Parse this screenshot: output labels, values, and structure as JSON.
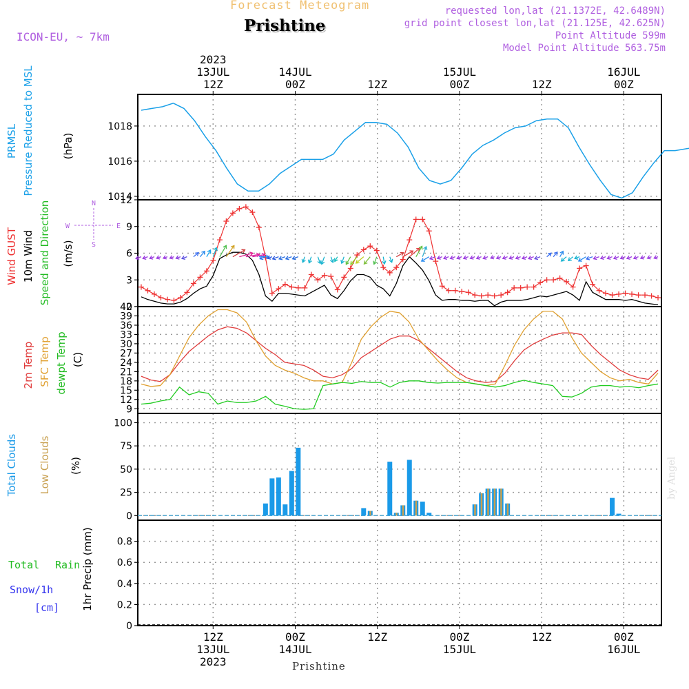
{
  "header": {
    "title": "Forecast Meteogram",
    "location": "Prishtine",
    "model": "ICON-EU, ~ 7km",
    "requested": "requested lon,lat (21.1372E, 42.6489N)",
    "gridpoint": "grid point closest lon,lat (21.125E, 42.625N)",
    "point_alt": "Point Altitude 599m",
    "model_alt": "Model Point Altitude 563.75m",
    "footer": "Prishtine",
    "watermark": "by Angel"
  },
  "colors": {
    "pressure": "#1aa0e8",
    "gust": "#ee3333",
    "wind": "#000000",
    "temp2m": "#e03c3c",
    "sfctemp": "#e0a030",
    "dewpt": "#22cc22",
    "cloud_total": "#1a9ae8",
    "cloud_low": "#c8a050",
    "purple": "#b060e0",
    "header_orange": "#f0c070",
    "snow": "#3333ee",
    "green_label": "#22bb22"
  },
  "chart_data": [
    {
      "type": "line",
      "name": "pressure",
      "ylabels": [
        "PRMSL",
        "Pressure Reduced to MSL",
        "(hPa)"
      ],
      "ylim": [
        1013.8,
        1019.8
      ],
      "yticks": [
        1014,
        1016,
        1018
      ],
      "x_step_hours": 3,
      "series": [
        {
          "name": "PRMSL",
          "values": [
            1018.9,
            1019.0,
            1019.1,
            1019.3,
            1019.0,
            1018.3,
            1017.4,
            1016.6,
            1015.6,
            1014.7,
            1014.3,
            1014.3,
            1014.7,
            1015.3,
            1015.7,
            1016.1,
            1016.1,
            1016.1,
            1016.4,
            1017.2,
            1017.7,
            1018.2,
            1018.2,
            1018.1,
            1017.6,
            1016.8,
            1015.6,
            1014.9,
            1014.7,
            1014.9,
            1015.6,
            1016.4,
            1016.9,
            1017.2,
            1017.6,
            1017.9,
            1018.0,
            1018.3,
            1018.4,
            1018.4,
            1017.9,
            1016.8,
            1015.8,
            1014.9,
            1014.1,
            1013.9,
            1014.2,
            1015.1,
            1015.9,
            1016.6,
            1016.6,
            1016.7,
            1016.8,
            1017.1
          ]
        }
      ]
    },
    {
      "type": "line",
      "name": "wind",
      "ylabels": [
        "Wind GUST",
        "10m Wind",
        "Speed and Direction",
        "(m/s)"
      ],
      "compass": [
        "N",
        "S",
        "W",
        "E"
      ],
      "ylim": [
        0,
        12
      ],
      "yticks": [
        0,
        3,
        6,
        9,
        12
      ],
      "x_step_hours": 1.5,
      "series": [
        {
          "name": "Wind GUST",
          "values": [
            2.2,
            1.8,
            1.4,
            1.0,
            0.8,
            0.7,
            1.0,
            1.6,
            2.6,
            3.3,
            4.0,
            5.2,
            7.5,
            9.6,
            10.5,
            11.0,
            11.2,
            10.6,
            8.9,
            5.5,
            1.5,
            2.0,
            2.5,
            2.2,
            2.1,
            2.1,
            3.6,
            3.0,
            3.5,
            3.4,
            1.9,
            3.3,
            4.3,
            5.8,
            6.4,
            6.8,
            6.3,
            4.4,
            3.8,
            4.4,
            5.3,
            7.5,
            9.8,
            9.8,
            8.5,
            5.1,
            2.3,
            1.8,
            1.8,
            1.7,
            1.6,
            1.3,
            1.2,
            1.3,
            1.2,
            1.3,
            1.6,
            2.1,
            2.1,
            2.2,
            2.2,
            2.7,
            3.0,
            3.0,
            3.2,
            2.8,
            2.2,
            4.3,
            4.6,
            2.5,
            1.8,
            1.5,
            1.3,
            1.4,
            1.5,
            1.4,
            1.3,
            1.3,
            1.2,
            1.0
          ]
        },
        {
          "name": "10m Wind",
          "values": [
            1.1,
            0.8,
            0.6,
            0.4,
            0.3,
            0.3,
            0.5,
            0.9,
            1.5,
            2.0,
            2.3,
            3.5,
            5.4,
            5.8,
            6.1,
            6.1,
            5.9,
            5.2,
            3.6,
            1.2,
            0.6,
            1.5,
            1.5,
            1.4,
            1.3,
            1.2,
            1.6,
            2.0,
            2.4,
            1.3,
            0.9,
            1.8,
            2.9,
            3.6,
            3.6,
            3.3,
            2.4,
            2.0,
            1.2,
            2.6,
            4.6,
            5.6,
            4.9,
            4.1,
            2.9,
            1.3,
            0.7,
            0.8,
            0.8,
            0.7,
            0.7,
            0.6,
            0.7,
            0.7,
            0.1,
            0.5,
            0.7,
            0.7,
            0.7,
            0.8,
            1.0,
            1.2,
            1.1,
            1.3,
            1.5,
            1.7,
            1.3,
            0.7,
            2.8,
            1.6,
            1.2,
            0.8,
            0.8,
            0.8,
            0.7,
            0.8,
            0.6,
            0.4,
            0.3,
            0.2
          ]
        }
      ],
      "arrow_colors": [
        "#9b3be0",
        "#9b3be0",
        "#9b3be0",
        "#9b3be0",
        "#9b3be0",
        "#9b3be0",
        "#8a3ee0",
        "#5a4fe0",
        "#3a6ef0",
        "#2a8cf0",
        "#1aa4f0",
        "#1ab4d0",
        "#50c050",
        "#d0a020",
        "#d04040",
        "#e02090",
        "#e020a0",
        "#d020a0",
        "#2a8cf0",
        "#2a6ef0",
        "#2a5ae0",
        "#2a5ae0",
        "#2a6ee0",
        "#2a6ee0",
        "#2a6ee0",
        "#1ab4d0",
        "#1ab4d0",
        "#1ab4d0",
        "#1ab4d0",
        "#1ab4d0",
        "#1ac0c0",
        "#1ab4d0",
        "#60c040",
        "#90d030",
        "#c0d020",
        "#80c040",
        "#50c050",
        "#1ab4d0",
        "#1ab4d0",
        "#d04040",
        "#e04040",
        "#e04040",
        "#60c040",
        "#30b0d0",
        "#2a8cf0",
        "#9b3be0",
        "#9b3be0",
        "#9b3be0",
        "#9b3be0",
        "#9b3be0",
        "#9b3be0",
        "#9b3be0",
        "#9b3be0",
        "#9b3be0",
        "#9b3be0",
        "#9b3be0",
        "#9b3be0",
        "#9b3be0",
        "#9b3be0",
        "#9b3be0",
        "#9b3be0",
        "#6a4fe0",
        "#3a6ef0",
        "#3a6ef0",
        "#2a8cf0",
        "#1ab4d0",
        "#1ab4d0",
        "#1ab4d0",
        "#2a8cf0",
        "#3a6ef0",
        "#9b3be0",
        "#9b3be0",
        "#9b3be0",
        "#9b3be0",
        "#9b3be0",
        "#9b3be0",
        "#9b3be0",
        "#9b3be0",
        "#9b3be0",
        "#9b3be0"
      ],
      "arrow_dirs": [
        250,
        250,
        250,
        250,
        250,
        250,
        250,
        250,
        50,
        40,
        30,
        20,
        30,
        35,
        60,
        75,
        80,
        80,
        90,
        250,
        250,
        250,
        250,
        250,
        250,
        200,
        200,
        160,
        200,
        160,
        210,
        200,
        210,
        220,
        230,
        220,
        200,
        170,
        160,
        60,
        60,
        50,
        30,
        20,
        240,
        250,
        250,
        250,
        250,
        250,
        250,
        250,
        250,
        250,
        250,
        250,
        250,
        250,
        250,
        250,
        250,
        250,
        50,
        40,
        30,
        230,
        230,
        250,
        240,
        250,
        250,
        250,
        250,
        250,
        250,
        250,
        250,
        250,
        250,
        250
      ]
    },
    {
      "type": "line",
      "name": "temperature",
      "ylabels": [
        "2m Temp",
        "SFC Temp",
        "dewpt Temp",
        "(C)"
      ],
      "ylim": [
        7.5,
        42
      ],
      "yticks": [
        9,
        12,
        15,
        18,
        21,
        24,
        27,
        30,
        33,
        36,
        39,
        42
      ],
      "x_step_hours": 3,
      "series": [
        {
          "name": "2m Temp",
          "values": [
            19.5,
            18.3,
            17.8,
            20.0,
            24.0,
            27.5,
            30.0,
            32.5,
            34.5,
            35.5,
            35.0,
            33.5,
            31.0,
            28.5,
            26.5,
            24.0,
            23.5,
            23.0,
            21.5,
            19.5,
            19.0,
            20.0,
            22.0,
            25.5,
            27.5,
            29.5,
            31.5,
            32.5,
            32.5,
            31.0,
            28.5,
            26.0,
            23.5,
            21.0,
            19.0,
            18.0,
            17.5,
            17.8,
            20.5,
            24.5,
            28.0,
            30.0,
            31.5,
            32.8,
            33.5,
            33.5,
            33.0,
            29.5,
            26.5,
            24.0,
            21.5,
            20.0,
            19.0,
            18.5,
            21.5
          ]
        },
        {
          "name": "SFC Temp",
          "values": [
            17.0,
            16.2,
            16.5,
            20.0,
            26.0,
            32.0,
            36.0,
            39.0,
            41.0,
            41.0,
            40.0,
            37.0,
            31.0,
            26.0,
            23.0,
            21.5,
            20.5,
            19.0,
            18.0,
            18.0,
            17.0,
            17.5,
            24.0,
            31.5,
            35.5,
            38.5,
            40.5,
            40.0,
            37.0,
            31.5,
            28.0,
            24.5,
            21.5,
            19.0,
            17.5,
            17.0,
            16.5,
            17.0,
            23.0,
            29.5,
            34.5,
            38.0,
            40.5,
            40.5,
            38.0,
            32.0,
            27.0,
            24.0,
            21.0,
            19.0,
            18.0,
            18.5,
            17.5,
            17.0,
            20.5
          ]
        },
        {
          "name": "dewpt Temp",
          "values": [
            10.5,
            10.8,
            11.5,
            12.0,
            16.0,
            13.5,
            14.5,
            14.0,
            10.5,
            11.5,
            11.0,
            11.0,
            11.5,
            13.0,
            10.5,
            9.8,
            9.0,
            8.8,
            9.0,
            16.5,
            17.0,
            17.5,
            17.2,
            17.8,
            17.5,
            17.5,
            16.0,
            17.5,
            18.0,
            18.0,
            17.5,
            17.3,
            17.5,
            17.5,
            17.5,
            17.0,
            16.5,
            16.0,
            16.5,
            17.5,
            18.2,
            17.5,
            17.0,
            16.5,
            13.0,
            12.8,
            14.0,
            16.0,
            16.5,
            16.5,
            16.0,
            16.2,
            15.8,
            16.5,
            17.0
          ]
        }
      ]
    },
    {
      "type": "bar",
      "name": "clouds",
      "ylabels": [
        "Total Clouds",
        "Low Clouds",
        "(%)"
      ],
      "ylim": [
        -5,
        110
      ],
      "yticks": [
        0,
        25,
        50,
        75,
        100
      ],
      "x_step_hours": 1.5,
      "series": [
        {
          "name": "Total Clouds",
          "values": [
            0,
            0,
            0,
            0,
            0,
            0,
            0,
            0,
            0,
            0,
            0,
            0,
            0,
            0,
            0,
            0,
            0,
            0,
            0,
            13,
            40,
            41,
            12,
            48,
            73,
            0,
            0,
            0,
            0,
            0,
            0,
            0,
            0,
            0,
            8,
            5,
            0,
            0,
            58,
            3,
            11,
            60,
            16,
            15,
            3,
            0,
            0,
            0,
            0,
            0,
            0,
            12,
            24,
            29,
            29,
            29,
            13,
            0,
            0,
            0,
            0,
            0,
            0,
            0,
            0,
            0,
            0,
            0,
            0,
            0,
            0,
            0,
            19,
            2,
            0,
            0,
            0,
            0,
            0,
            0
          ]
        },
        {
          "name": "Low Clouds",
          "values": [
            0,
            0,
            0,
            0,
            0,
            0,
            0,
            0,
            0,
            0,
            0,
            0,
            0,
            0,
            0,
            0,
            0,
            0,
            0,
            0,
            0,
            0,
            0,
            0,
            0,
            0,
            0,
            0,
            0,
            0,
            0,
            0,
            0,
            0,
            0,
            5,
            0,
            0,
            0,
            3,
            11,
            0,
            16,
            0,
            0,
            0,
            0,
            0,
            0,
            0,
            0,
            12,
            24,
            29,
            29,
            29,
            13,
            0,
            0,
            0,
            0,
            0,
            0,
            0,
            0,
            0,
            0,
            0,
            0,
            0,
            0,
            0,
            0,
            0,
            0,
            0,
            0,
            0,
            0,
            0
          ]
        }
      ]
    },
    {
      "type": "bar",
      "name": "precip",
      "ylabels": [
        "1hr Precip (mm)"
      ],
      "legend": [
        "Total",
        "Rain",
        "Snow/1h",
        "[cm]"
      ],
      "ylim": [
        0,
        1.0
      ],
      "yticks": [
        0,
        0.2,
        0.4,
        0.6,
        0.8
      ],
      "yticklabels": [
        "0",
        "0.2",
        "0.4",
        "0.6",
        "0.8"
      ],
      "series": [
        {
          "name": "Total",
          "values": []
        },
        {
          "name": "Rain",
          "values": []
        },
        {
          "name": "Snow/1h",
          "values": []
        }
      ]
    }
  ],
  "xaxis": {
    "ticks": [
      {
        "hour": 0,
        "top": [
          "2023",
          "13JUL",
          "12Z"
        ],
        "bottom": [
          "12Z",
          "13JUL",
          "2023"
        ]
      },
      {
        "hour": 12,
        "top": [
          "14JUL",
          "00Z"
        ],
        "bottom": [
          "00Z",
          "14JUL"
        ]
      },
      {
        "hour": 24,
        "top": [
          "12Z"
        ],
        "bottom": [
          "12Z"
        ]
      },
      {
        "hour": 36,
        "top": [
          "15JUL",
          "00Z"
        ],
        "bottom": [
          "00Z",
          "15JUL"
        ]
      },
      {
        "hour": 48,
        "top": [
          "12Z"
        ],
        "bottom": [
          "12Z"
        ]
      },
      {
        "hour": 60,
        "top": [
          "16JUL",
          "00Z"
        ],
        "bottom": [
          "00Z",
          "16JUL"
        ]
      }
    ],
    "start_hour": -11,
    "end_hour": 65.5
  }
}
